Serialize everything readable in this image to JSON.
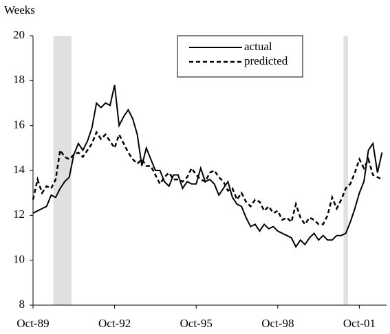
{
  "chart_data": {
    "type": "line",
    "y_label": "Weeks",
    "x": [
      "1989-10",
      "1989-12",
      "1990-02",
      "1990-04",
      "1990-06",
      "1990-08",
      "1990-10",
      "1990-12",
      "1991-02",
      "1991-04",
      "1991-06",
      "1991-08",
      "1991-10",
      "1991-12",
      "1992-02",
      "1992-04",
      "1992-06",
      "1992-08",
      "1992-10",
      "1992-12",
      "1993-02",
      "1993-04",
      "1993-06",
      "1993-08",
      "1993-10",
      "1993-12",
      "1994-02",
      "1994-04",
      "1994-06",
      "1994-08",
      "1994-10",
      "1994-12",
      "1995-02",
      "1995-04",
      "1995-06",
      "1995-08",
      "1995-10",
      "1995-12",
      "1996-02",
      "1996-04",
      "1996-06",
      "1996-08",
      "1996-10",
      "1996-12",
      "1997-02",
      "1997-04",
      "1997-06",
      "1997-08",
      "1997-10",
      "1997-12",
      "1998-02",
      "1998-04",
      "1998-06",
      "1998-08",
      "1998-10",
      "1998-12",
      "1999-02",
      "1999-04",
      "1999-06",
      "1999-08",
      "1999-10",
      "1999-12",
      "2000-02",
      "2000-04",
      "2000-06",
      "2000-08",
      "2000-10",
      "2000-12",
      "2001-02",
      "2001-04",
      "2001-06",
      "2001-08",
      "2001-10",
      "2001-12",
      "2002-02",
      "2002-04",
      "2002-06",
      "2002-08"
    ],
    "series": [
      {
        "name": "actual",
        "color": "#000000",
        "dash": "solid",
        "values": [
          12.1,
          12.2,
          12.3,
          12.4,
          12.9,
          12.8,
          13.2,
          13.5,
          13.7,
          14.7,
          15.2,
          14.9,
          15.3,
          15.9,
          17.0,
          16.8,
          17.0,
          16.9,
          17.8,
          16.0,
          16.4,
          16.7,
          16.3,
          15.6,
          14.2,
          15.0,
          14.5,
          14.0,
          14.0,
          13.5,
          13.3,
          13.8,
          13.8,
          13.2,
          13.5,
          13.4,
          13.4,
          14.1,
          13.5,
          13.6,
          13.4,
          12.9,
          13.2,
          13.5,
          12.8,
          12.5,
          12.4,
          11.9,
          11.5,
          11.6,
          11.3,
          11.6,
          11.4,
          11.5,
          11.3,
          11.2,
          11.1,
          11.0,
          10.6,
          10.9,
          10.7,
          11.0,
          11.2,
          10.9,
          11.1,
          10.9,
          10.9,
          11.1,
          11.1,
          11.2,
          11.7,
          12.3,
          13.0,
          13.5,
          14.9,
          15.2,
          13.9,
          14.8
        ]
      },
      {
        "name": "predicted",
        "color": "#000000",
        "dash": "dashed",
        "values": [
          12.7,
          13.6,
          13.0,
          13.3,
          13.2,
          13.6,
          14.9,
          14.6,
          14.5,
          14.7,
          14.8,
          14.6,
          14.9,
          15.2,
          15.7,
          15.4,
          15.6,
          15.3,
          15.0,
          15.6,
          15.2,
          14.8,
          14.5,
          14.3,
          14.5,
          14.2,
          14.2,
          13.8,
          13.4,
          13.7,
          13.9,
          13.6,
          13.6,
          13.5,
          13.7,
          14.1,
          13.8,
          13.6,
          13.5,
          13.9,
          14.0,
          13.7,
          13.5,
          13.1,
          13.2,
          12.7,
          13.0,
          12.6,
          12.4,
          12.7,
          12.6,
          12.2,
          12.4,
          12.1,
          12.2,
          11.8,
          11.9,
          11.7,
          12.5,
          11.9,
          11.6,
          11.9,
          11.8,
          11.6,
          11.6,
          12.0,
          12.8,
          12.3,
          12.7,
          13.2,
          13.4,
          13.9,
          14.5,
          14.1,
          14.5,
          13.8,
          13.7,
          13.6
        ]
      }
    ],
    "shaded_periods": [
      {
        "start": "1990-07",
        "end": "1991-03"
      },
      {
        "start": "2001-03",
        "end": "2001-05"
      }
    ],
    "shade_color": "#e0e0e0",
    "xlim": [
      "1989-10",
      "2002-10"
    ],
    "xticks": [
      {
        "value": "1989-10",
        "label": "Oct-89"
      },
      {
        "value": "1992-10",
        "label": "Oct-92"
      },
      {
        "value": "1995-10",
        "label": "Oct-95"
      },
      {
        "value": "1998-10",
        "label": "Oct-98"
      },
      {
        "value": "2001-10",
        "label": "Oct-01"
      }
    ],
    "ylim": [
      8,
      20
    ],
    "yticks": [
      8,
      10,
      12,
      14,
      16,
      18,
      20
    ],
    "grid": false,
    "legend": "top-right"
  }
}
